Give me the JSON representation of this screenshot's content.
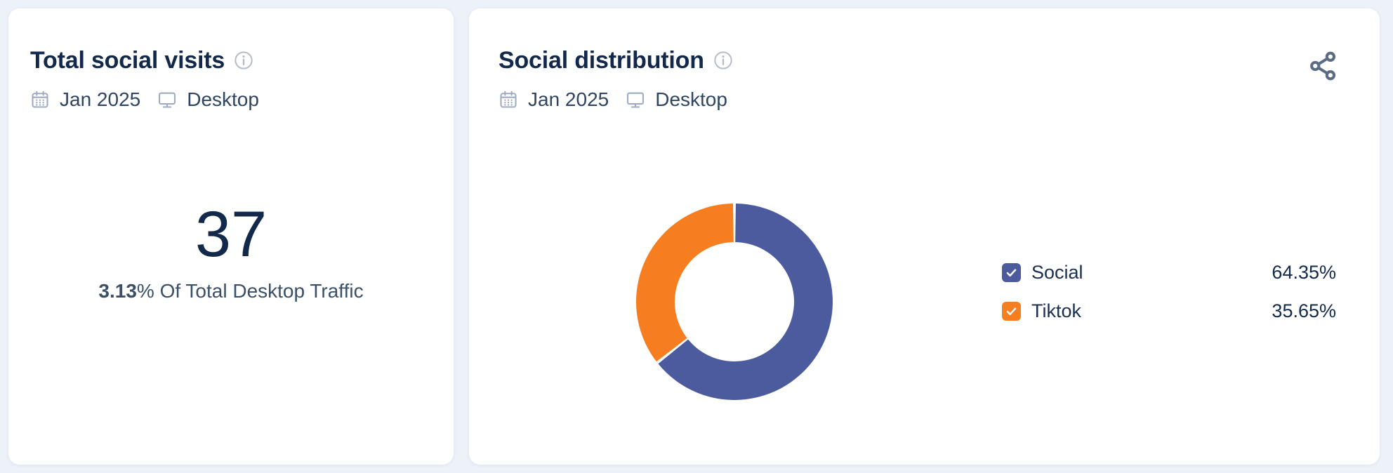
{
  "page": {
    "background_color": "#edf1f8",
    "card_color": "#ffffff"
  },
  "colors": {
    "title_text": "#13294b",
    "meta_text": "#2f4561",
    "muted_icon": "#9fabc0",
    "info_icon": "#b6bdc9",
    "share_icon": "#5a6b84",
    "stat_text": "#13294b",
    "subtitle_text": "#3a5069"
  },
  "cards": {
    "total_social_visits": {
      "title": "Total social visits",
      "date_label": "Jan 2025",
      "device_label": "Desktop",
      "value": "37",
      "subtitle_bold": "3.13",
      "subtitle_rest": "% Of Total Desktop Traffic"
    },
    "social_distribution": {
      "title": "Social distribution",
      "date_label": "Jan 2025",
      "device_label": "Desktop"
    }
  },
  "icons": {
    "calendar": "calendar-icon",
    "desktop": "desktop-monitor-icon",
    "info": "info-icon",
    "share": "share-icon",
    "checkbox": "checked-checkbox-icon"
  },
  "chart_data": {
    "type": "pie",
    "subtype": "donut",
    "title": "Social distribution",
    "period": "Jan 2025",
    "device": "Desktop",
    "legend_position": "right",
    "start_angle_deg": 0,
    "direction": "clockwise",
    "series": [
      {
        "name": "Social",
        "value": 64.35,
        "display": "64.35%",
        "color": "#4C5B9E",
        "checked": true
      },
      {
        "name": "Tiktok",
        "value": 35.65,
        "display": "35.65%",
        "color": "#F67D20",
        "checked": true
      }
    ]
  }
}
